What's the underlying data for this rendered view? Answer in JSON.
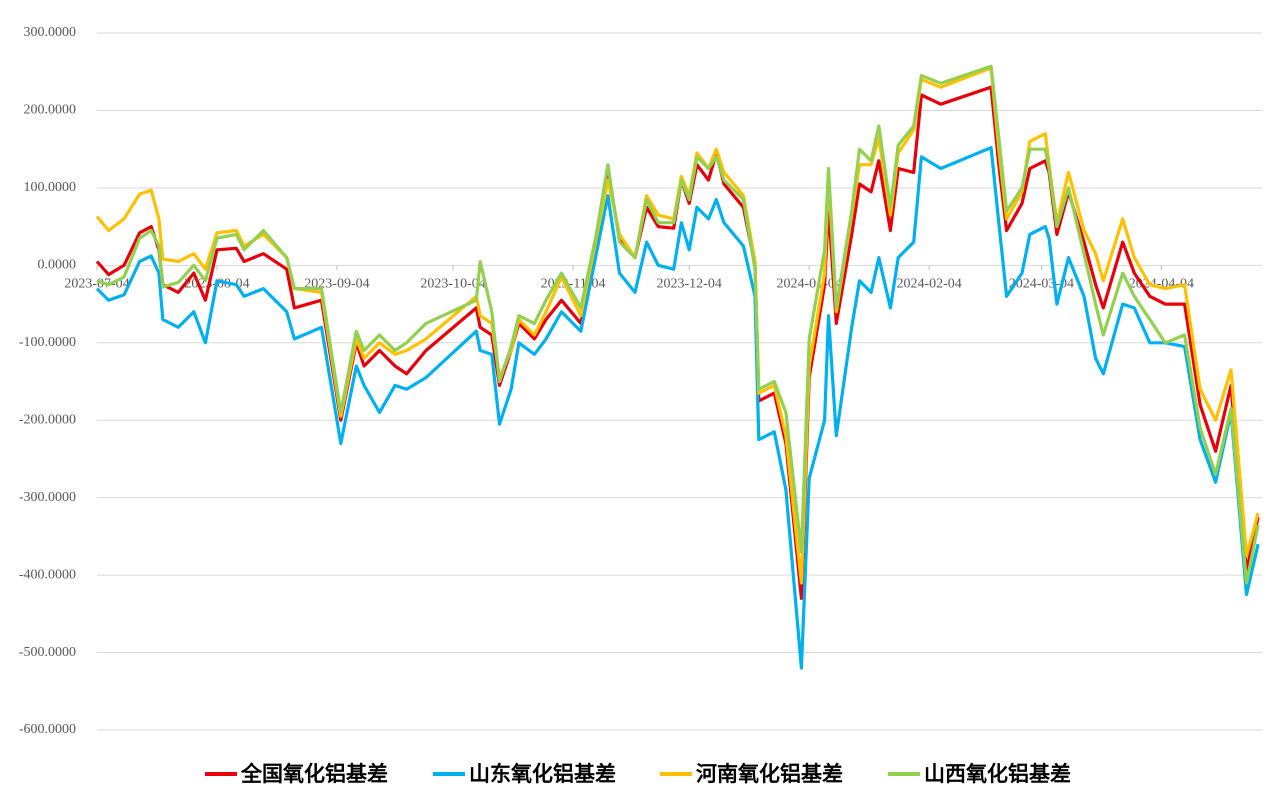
{
  "chart_data": {
    "type": "line",
    "x": [
      "2023-07-04",
      "2023-07-07",
      "2023-07-11",
      "2023-07-15",
      "2023-07-18",
      "2023-07-20",
      "2023-07-21",
      "2023-07-25",
      "2023-07-29",
      "2023-08-01",
      "2023-08-04",
      "2023-08-09",
      "2023-08-11",
      "2023-08-16",
      "2023-08-22",
      "2023-08-24",
      "2023-08-31",
      "2023-09-05",
      "2023-09-09",
      "2023-09-11",
      "2023-09-15",
      "2023-09-19",
      "2023-09-22",
      "2023-09-27",
      "2023-10-10",
      "2023-10-11",
      "2023-10-14",
      "2023-10-16",
      "2023-10-19",
      "2023-10-21",
      "2023-10-25",
      "2023-10-28",
      "2023-11-01",
      "2023-11-06",
      "2023-11-10",
      "2023-11-13",
      "2023-11-16",
      "2023-11-20",
      "2023-11-23",
      "2023-11-26",
      "2023-11-30",
      "2023-12-02",
      "2023-12-04",
      "2023-12-06",
      "2023-12-09",
      "2023-12-11",
      "2023-12-13",
      "2023-12-18",
      "2023-12-21",
      "2023-12-22",
      "2023-12-26",
      "2023-12-29",
      "2024-01-02",
      "2024-01-04",
      "2024-01-08",
      "2024-01-09",
      "2024-01-11",
      "2024-01-15",
      "2024-01-17",
      "2024-01-20",
      "2024-01-22",
      "2024-01-25",
      "2024-01-27",
      "2024-01-31",
      "2024-02-02",
      "2024-02-07",
      "2024-02-20",
      "2024-02-22",
      "2024-02-24",
      "2024-02-28",
      "2024-03-01",
      "2024-03-05",
      "2024-03-06",
      "2024-03-08",
      "2024-03-11",
      "2024-03-15",
      "2024-03-18",
      "2024-03-20",
      "2024-03-25",
      "2024-03-28",
      "2024-04-01",
      "2024-04-05",
      "2024-04-10",
      "2024-04-14",
      "2024-04-18",
      "2024-04-22",
      "2024-04-26",
      "2024-04-29"
    ],
    "series": [
      {
        "name": "全国氧化铝基差",
        "color": "#e8000b",
        "values": [
          5,
          -12,
          0,
          42,
          50,
          20,
          -25,
          -35,
          -10,
          -45,
          20,
          22,
          5,
          15,
          -5,
          -55,
          -45,
          -200,
          -100,
          -130,
          -110,
          -130,
          -140,
          -110,
          -55,
          -80,
          -90,
          -155,
          -110,
          -75,
          -95,
          -70,
          -45,
          -75,
          30,
          120,
          35,
          10,
          75,
          50,
          48,
          110,
          80,
          130,
          110,
          145,
          105,
          75,
          0,
          -175,
          -165,
          -230,
          -430,
          -145,
          -25,
          75,
          -75,
          40,
          105,
          95,
          135,
          45,
          125,
          120,
          220,
          208,
          230,
          130,
          45,
          80,
          125,
          135,
          120,
          40,
          95,
          30,
          -25,
          -55,
          30,
          -10,
          -40,
          -50,
          -50,
          -180,
          -240,
          -155,
          -395,
          -325
        ]
      },
      {
        "name": "山东氧化铝基差",
        "color": "#00b0f0",
        "values": [
          -30,
          -45,
          -38,
          5,
          12,
          -10,
          -70,
          -80,
          -60,
          -100,
          -20,
          -25,
          -40,
          -30,
          -60,
          -95,
          -80,
          -230,
          -130,
          -155,
          -190,
          -155,
          -160,
          -145,
          -85,
          -110,
          -115,
          -205,
          -160,
          -100,
          -115,
          -95,
          -60,
          -85,
          15,
          90,
          -10,
          -35,
          30,
          0,
          -5,
          55,
          20,
          75,
          60,
          85,
          55,
          25,
          -40,
          -225,
          -215,
          -290,
          -520,
          -275,
          -200,
          -65,
          -220,
          -80,
          -20,
          -35,
          10,
          -55,
          10,
          30,
          140,
          125,
          152,
          55,
          -40,
          -10,
          40,
          50,
          35,
          -50,
          10,
          -40,
          -120,
          -140,
          -50,
          -55,
          -100,
          -100,
          -105,
          -225,
          -280,
          -190,
          -425,
          -360
        ]
      },
      {
        "name": "河南氧化铝基差",
        "color": "#ffc000",
        "values": [
          63,
          45,
          60,
          92,
          97,
          60,
          8,
          5,
          15,
          -5,
          42,
          45,
          25,
          40,
          10,
          -30,
          -35,
          -195,
          -95,
          -120,
          -100,
          -115,
          -110,
          -95,
          -40,
          -65,
          -75,
          -145,
          -110,
          -70,
          -90,
          -60,
          -15,
          -65,
          35,
          110,
          40,
          10,
          90,
          65,
          60,
          115,
          90,
          145,
          125,
          150,
          120,
          90,
          5,
          -165,
          -155,
          -220,
          -410,
          -130,
          -10,
          115,
          -60,
          65,
          130,
          130,
          165,
          65,
          145,
          175,
          240,
          230,
          255,
          150,
          60,
          95,
          160,
          170,
          130,
          55,
          120,
          45,
          15,
          -20,
          60,
          10,
          -25,
          -30,
          -25,
          -160,
          -200,
          -135,
          -375,
          -320
        ]
      },
      {
        "name": "山西氧化铝基差",
        "color": "#92d050",
        "values": [
          -20,
          -25,
          -15,
          35,
          45,
          25,
          -28,
          -22,
          0,
          -20,
          35,
          40,
          20,
          45,
          10,
          -30,
          -30,
          -190,
          -85,
          -110,
          -90,
          -110,
          -100,
          -75,
          -45,
          5,
          -60,
          -150,
          -105,
          -65,
          -75,
          -45,
          -10,
          -55,
          40,
          130,
          30,
          10,
          85,
          55,
          55,
          110,
          85,
          140,
          125,
          140,
          110,
          85,
          -5,
          -160,
          -150,
          -190,
          -370,
          -95,
          20,
          125,
          -55,
          70,
          150,
          135,
          180,
          75,
          155,
          180,
          245,
          235,
          257,
          165,
          70,
          100,
          150,
          150,
          125,
          50,
          100,
          15,
          -50,
          -90,
          -10,
          -40,
          -70,
          -100,
          -90,
          -210,
          -270,
          -185,
          -410,
          -335
        ]
      }
    ],
    "xlim": [
      "2023-07-04",
      "2024-04-30"
    ],
    "xticks": [
      "2023-07-04",
      "2023-08-04",
      "2023-09-04",
      "2023-10-04",
      "2023-11-04",
      "2023-12-04",
      "2024-01-04",
      "2024-02-04",
      "2024-03-04",
      "2024-04-04"
    ],
    "ylim": [
      -600,
      300
    ],
    "yticks": [
      {
        "value": -600,
        "label": "-600.0000"
      },
      {
        "value": -500,
        "label": "-500.0000"
      },
      {
        "value": -400,
        "label": "-400.0000"
      },
      {
        "value": -300,
        "label": "-300.0000"
      },
      {
        "value": -200,
        "label": "-200.0000"
      },
      {
        "value": -100,
        "label": "-100.0000"
      },
      {
        "value": 0,
        "label": "0.0000"
      },
      {
        "value": 100,
        "label": "100.0000"
      },
      {
        "value": 200,
        "label": "200.0000"
      },
      {
        "value": 300,
        "label": "300.0000"
      }
    ],
    "grid": true,
    "legend": "bottom"
  }
}
